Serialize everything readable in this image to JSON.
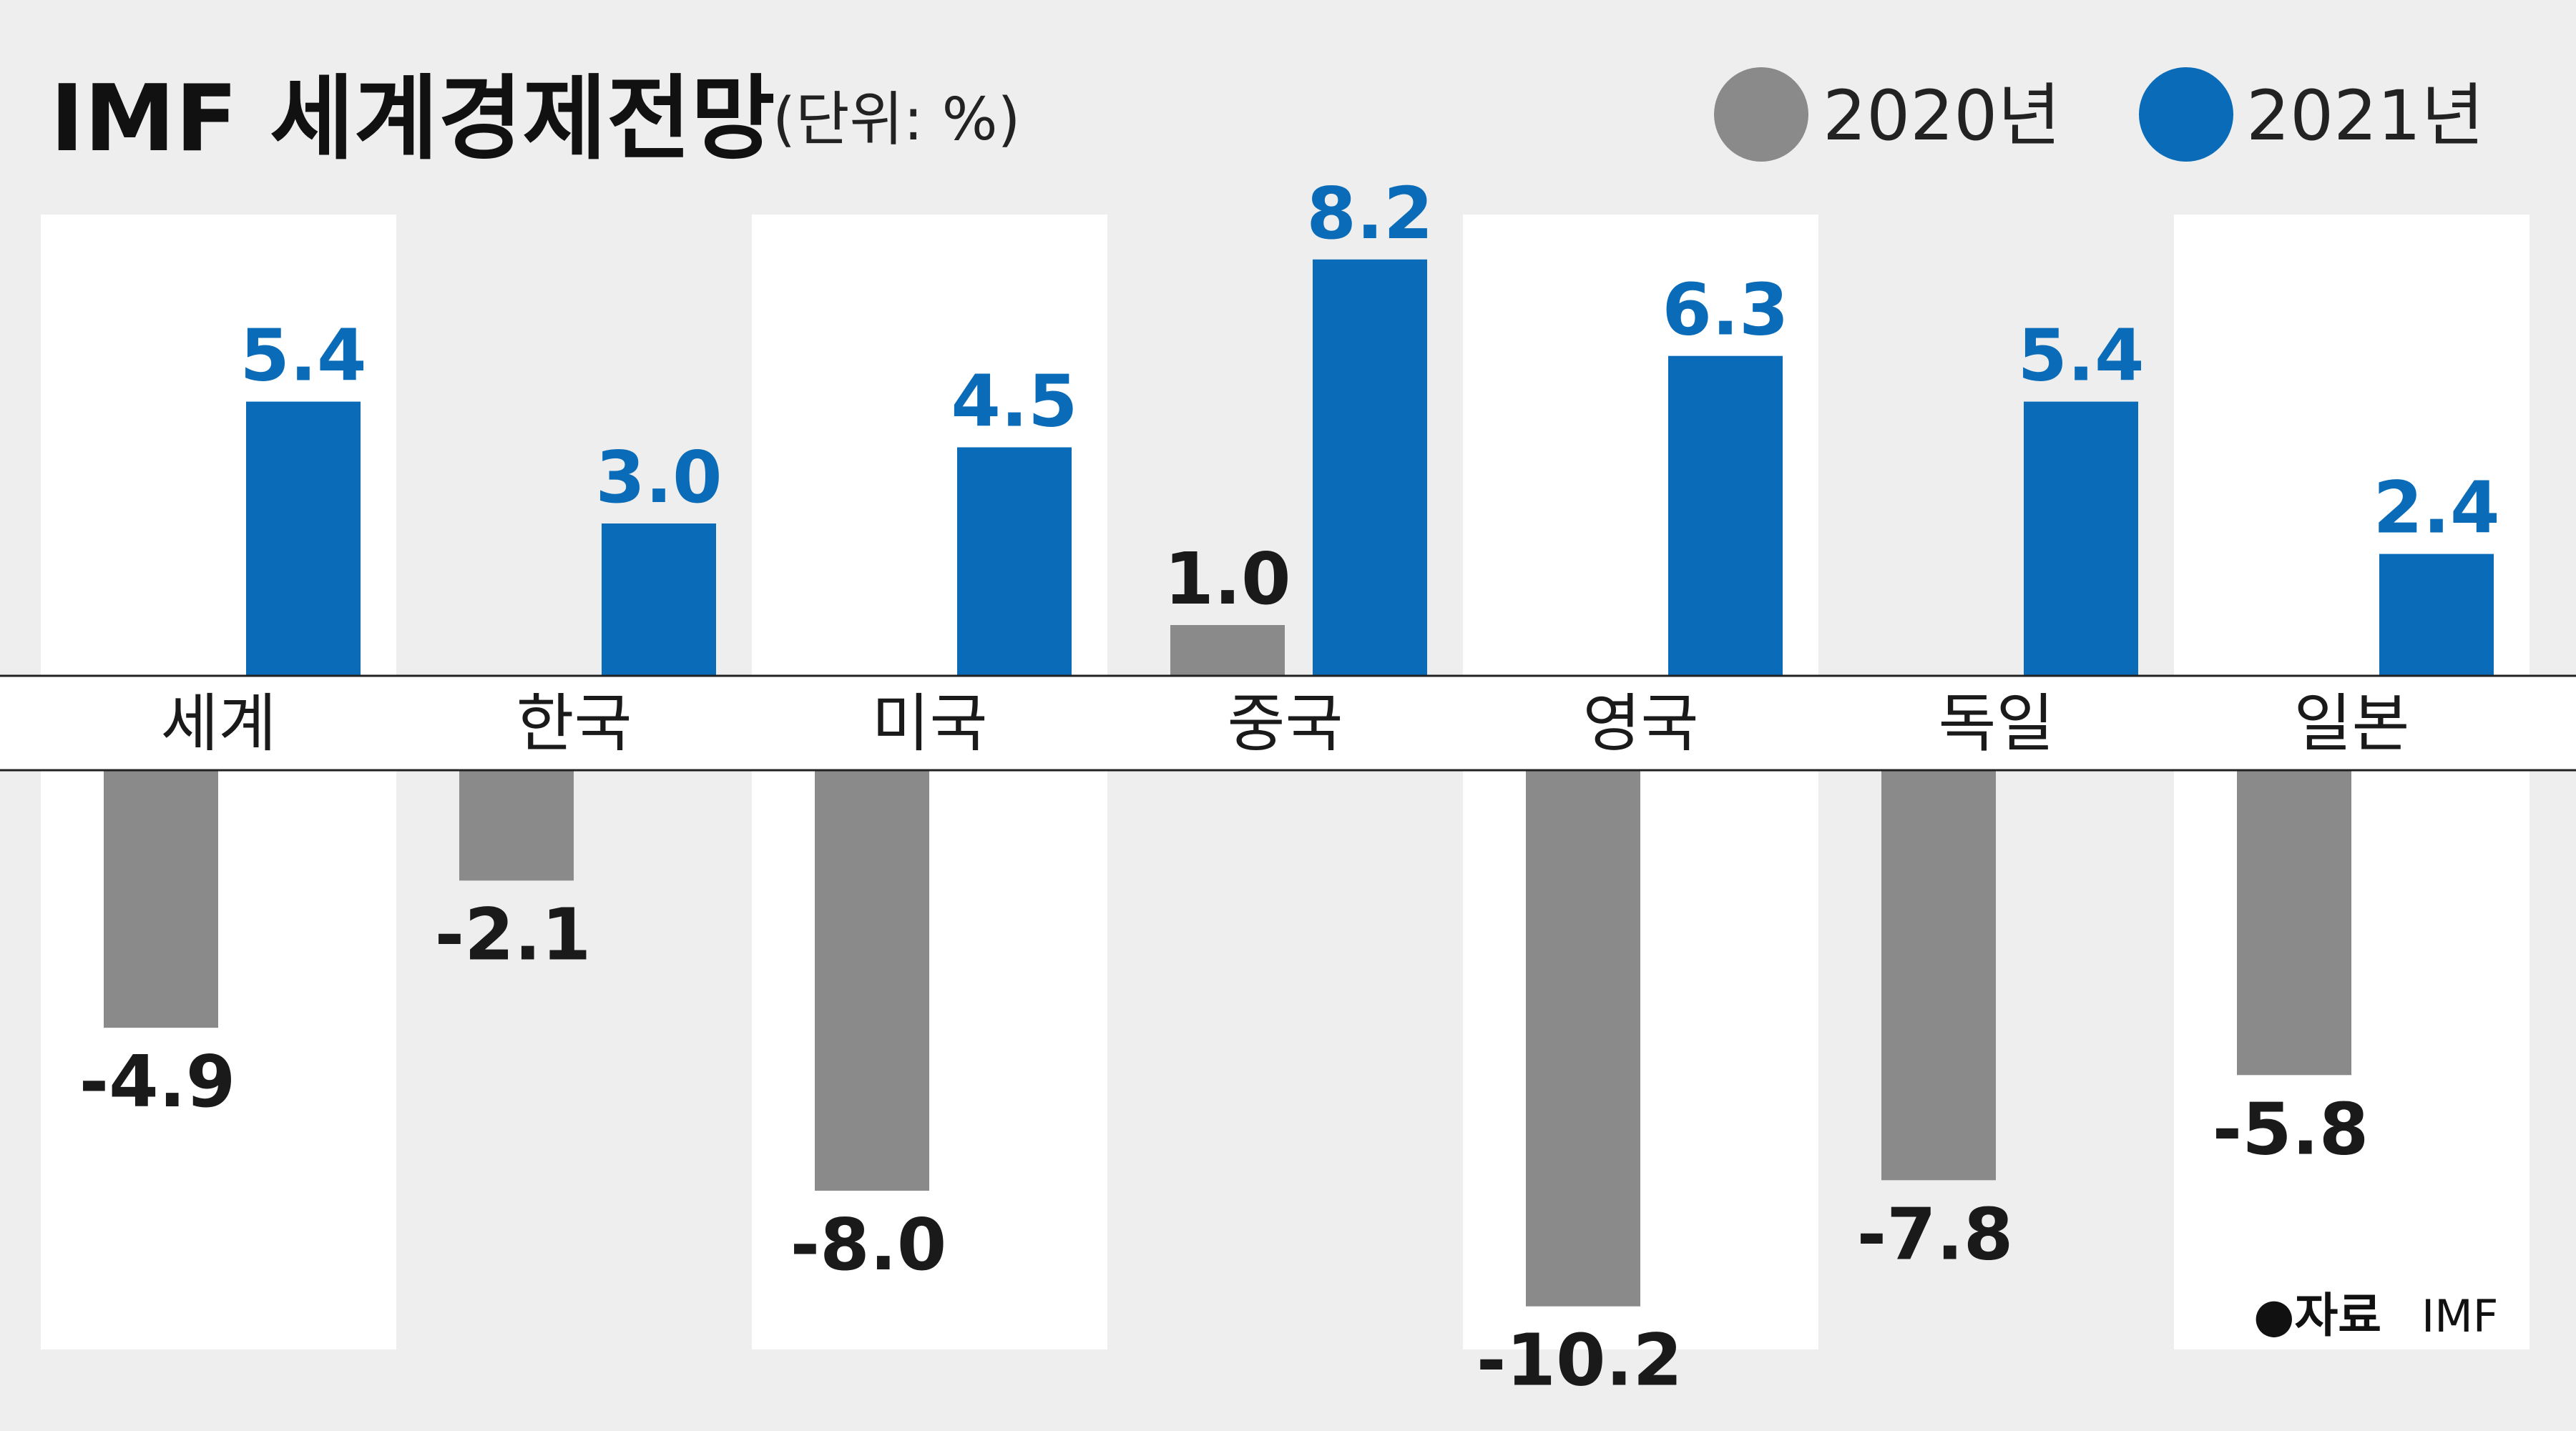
{
  "title": "IMF 세계경제전망",
  "unit": "(단위: %)",
  "source": {
    "label": "●자료",
    "value": "IMF"
  },
  "colors": {
    "background": "#edeeed",
    "panel": "#ffffff",
    "series_2020": "#8a8a8a",
    "series_2021": "#0a6cb8",
    "text": "#1a1a1a"
  },
  "chart_data": {
    "type": "bar",
    "categories": [
      "세계",
      "한국",
      "미국",
      "중국",
      "영국",
      "독일",
      "일본"
    ],
    "series": [
      {
        "name": "2020년",
        "values": [
          -4.9,
          -2.1,
          -8.0,
          1.0,
          -10.2,
          -7.8,
          -5.8
        ]
      },
      {
        "name": "2021년",
        "values": [
          5.4,
          3.0,
          4.5,
          8.2,
          6.3,
          5.4,
          2.4
        ]
      }
    ],
    "value_labels": {
      "2020년": [
        "-4.9",
        "-2.1",
        "-8.0",
        "1.0",
        "-10.2",
        "-7.8",
        "-5.8"
      ],
      "2021년": [
        "5.4",
        "3.0",
        "4.5",
        "8.2",
        "6.3",
        "5.4",
        "2.4"
      ]
    },
    "legend_position": "top-right",
    "grid": false,
    "alternating_panels": [
      true,
      false,
      true,
      false,
      true,
      false,
      true
    ]
  }
}
